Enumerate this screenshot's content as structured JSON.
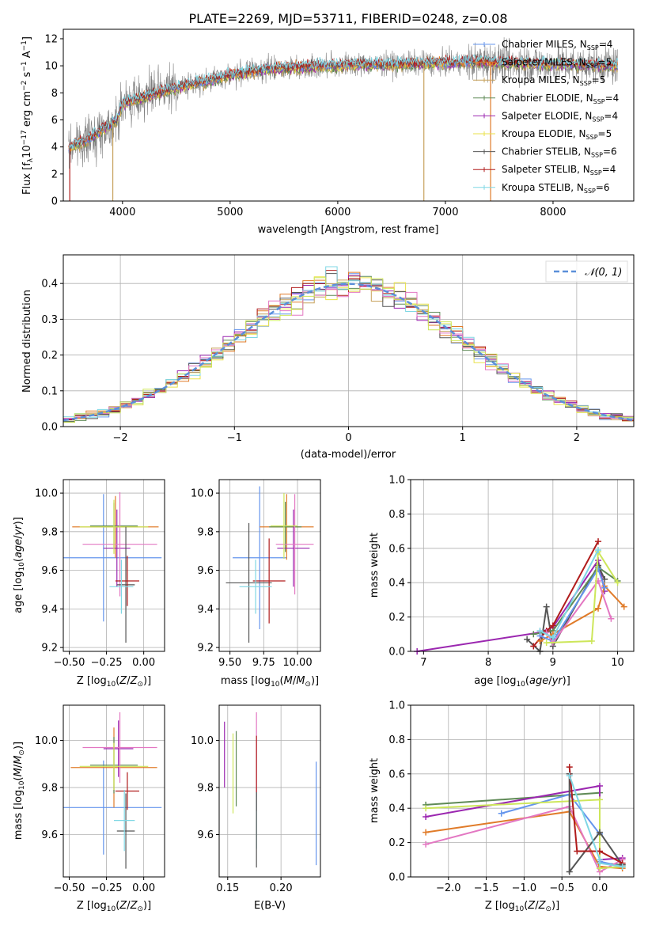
{
  "figure_title": "PLATE=2269, MJD=53711, FIBERID=0248, z=0.08",
  "colors": {
    "Chabrier MILES": "#6495ed",
    "Salpeter MILES": "#e07b29",
    "Kroupa MILES": "#c6a15b",
    "Chabrier ELODIE": "#5f8a56",
    "Salpeter ELODIE": "#9b27b0",
    "Kroupa ELODIE": "#e8e24a",
    "Chabrier STELIB": "#555555",
    "Salpeter STELIB": "#b01c1c",
    "Kroupa STELIB": "#7fd7e4",
    "pink": "#e377c2",
    "lime": "#cde65a",
    "gaussian": "#5b8fd9",
    "observed_spectrum": "#7f7f7f"
  },
  "chart_data": [
    {
      "id": "spectrum",
      "type": "line",
      "title": "PLATE=2269, MJD=53711, FIBERID=0248, z=0.08",
      "xlabel": "wavelength [Angstrom, rest frame]",
      "ylabel": "Flux [f_λ 10^-17 erg cm^-2 s^-1 A^-1]",
      "xlim": [
        3450,
        8750
      ],
      "ylim": [
        0,
        12.7
      ],
      "xticks": [
        4000,
        5000,
        6000,
        7000,
        8000
      ],
      "yticks": [
        0,
        2,
        4,
        6,
        8,
        10,
        12
      ],
      "legend_position": "right",
      "legend": [
        "Chabrier MILES, N_SSP=4",
        "Salpeter MILES, N_SSP=5",
        "Kroupa MILES, N_SSP=5",
        "Chabrier ELODIE, N_SSP=4",
        "Salpeter ELODIE, N_SSP=4",
        "Kroupa ELODIE, N_SSP=5",
        "Chabrier STELIB, N_SSP=6",
        "Salpeter STELIB, N_SSP=4",
        "Kroupa STELIB, N_SSP=6"
      ],
      "continuum": {
        "x": [
          3500,
          3550,
          3650,
          3800,
          3950,
          4000,
          4200,
          4500,
          4800,
          5000,
          5300,
          5600,
          5900,
          6200,
          6500,
          6800,
          7100,
          7400,
          7700,
          8000,
          8300,
          8600
        ],
        "y": [
          3.8,
          4.2,
          4.4,
          5.2,
          6.0,
          7.2,
          7.7,
          8.4,
          8.9,
          9.3,
          9.7,
          9.9,
          10.0,
          10.1,
          10.1,
          10.2,
          10.2,
          10.3,
          10.2,
          10.1,
          10.1,
          10.0
        ]
      },
      "noise_sigma": 0.9
    },
    {
      "id": "residuals",
      "type": "histogram",
      "xlabel": "(data-model)/error",
      "ylabel": "Normed distribution",
      "xlim": [
        -2.5,
        2.5
      ],
      "ylim": [
        0,
        0.48
      ],
      "xticks": [
        -2,
        -1,
        0,
        1,
        2
      ],
      "yticks": [
        0.0,
        0.1,
        0.2,
        0.3,
        0.4
      ],
      "legend": [
        "N(0,1)"
      ],
      "legend_position": "upper right",
      "bin_width": 0.1,
      "grid": true
    },
    {
      "id": "age-vs-Z",
      "type": "errorbar",
      "xlabel": "Z [log10(Z/Z_sun)]",
      "ylabel": "age [log10(age/yr)]",
      "xlim": [
        -0.54,
        0.14
      ],
      "ylim": [
        9.18,
        10.07
      ],
      "xticks": [
        -0.5,
        -0.25,
        0.0
      ],
      "yticks": [
        9.2,
        9.4,
        9.6,
        9.8,
        10.0
      ],
      "points": [
        {
          "color": "Chabrier MILES",
          "x": -0.27,
          "y": 9.665,
          "xerr": 0.39,
          "yerr": 0.33
        },
        {
          "color": "Salpeter MILES",
          "x": -0.19,
          "y": 9.825,
          "xerr": 0.29,
          "yerr": 0.16
        },
        {
          "color": "Chabrier ELODIE",
          "x": -0.2,
          "y": 9.83,
          "xerr": 0.16,
          "yerr": 0.12
        },
        {
          "color": "Salpeter ELODIE",
          "x": -0.18,
          "y": 9.715,
          "xerr": 0.09,
          "yerr": 0.2
        },
        {
          "color": "pink",
          "x": -0.16,
          "y": 9.735,
          "xerr": 0.25,
          "yerr": 0.27
        },
        {
          "color": "lime",
          "x": -0.2,
          "y": 9.825,
          "xerr": 0.23,
          "yerr": 0.14
        },
        {
          "color": "Chabrier STELIB",
          "x": -0.12,
          "y": 9.525,
          "xerr": 0.06,
          "yerr": 0.3
        },
        {
          "color": "Salpeter STELIB",
          "x": -0.11,
          "y": 9.545,
          "xerr": 0.08,
          "yerr": 0.13
        },
        {
          "color": "Kroupa STELIB",
          "x": -0.15,
          "y": 9.515,
          "xerr": 0.08,
          "yerr": 0.14
        }
      ]
    },
    {
      "id": "age-vs-mass",
      "type": "errorbar",
      "xlabel": "mass [log10(M/M_sun)]",
      "ylabel": "",
      "xlim": [
        9.42,
        10.17
      ],
      "ylim": [
        9.18,
        10.07
      ],
      "xticks": [
        9.5,
        9.75,
        10.0
      ],
      "yticks": [
        9.2,
        9.4,
        9.6,
        9.8,
        10.0
      ],
      "points": [
        {
          "color": "Chabrier MILES",
          "x": 9.72,
          "y": 9.665,
          "xerr": 0.2,
          "yerr": 0.37
        },
        {
          "color": "Salpeter MILES",
          "x": 9.92,
          "y": 9.825,
          "xerr": 0.2,
          "yerr": 0.17
        },
        {
          "color": "Chabrier ELODIE",
          "x": 9.91,
          "y": 9.825,
          "xerr": 0.12,
          "yerr": 0.13
        },
        {
          "color": "Salpeter ELODIE",
          "x": 9.97,
          "y": 9.715,
          "xerr": 0.12,
          "yerr": 0.2
        },
        {
          "color": "pink",
          "x": 9.98,
          "y": 9.735,
          "xerr": 0.14,
          "yerr": 0.26
        },
        {
          "color": "lime",
          "x": 9.9,
          "y": 9.83,
          "xerr": 0.1,
          "yerr": 0.17
        },
        {
          "color": "Chabrier STELIB",
          "x": 9.64,
          "y": 9.535,
          "xerr": 0.17,
          "yerr": 0.31
        },
        {
          "color": "Salpeter STELIB",
          "x": 9.79,
          "y": 9.545,
          "xerr": 0.12,
          "yerr": 0.22
        },
        {
          "color": "Kroupa STELIB",
          "x": 9.69,
          "y": 9.515,
          "xerr": 0.12,
          "yerr": 0.14
        }
      ]
    },
    {
      "id": "mass-weight-vs-age",
      "type": "line",
      "xlabel": "age [log10(age/yr)]",
      "ylabel": "mass weight",
      "xlim": [
        6.8,
        10.25
      ],
      "ylim": [
        0.0,
        1.0
      ],
      "xticks": [
        7,
        8,
        9,
        10
      ],
      "yticks": [
        0.0,
        0.2,
        0.4,
        0.6,
        0.8,
        1.0
      ],
      "grid": true,
      "series": [
        {
          "color": "Salpeter ELODIE",
          "x": [
            6.9,
            8.8,
            9.0,
            9.7,
            9.8
          ],
          "y": [
            0.0,
            0.11,
            0.14,
            0.53,
            0.35
          ]
        },
        {
          "color": "Chabrier STELIB",
          "x": [
            8.6,
            8.8,
            8.9,
            9.0,
            9.7,
            9.8
          ],
          "y": [
            0.07,
            0.0,
            0.26,
            0.03,
            0.5,
            0.42
          ]
        },
        {
          "color": "Chabrier ELODIE",
          "x": [
            8.7,
            9.0,
            9.7,
            10.0
          ],
          "y": [
            0.1,
            0.12,
            0.49,
            0.41
          ]
        },
        {
          "color": "Salpeter STELIB",
          "x": [
            8.7,
            8.9,
            9.0,
            9.7
          ],
          "y": [
            0.03,
            0.12,
            0.15,
            0.64
          ]
        },
        {
          "color": "Salpeter MILES",
          "x": [
            8.8,
            9.0,
            9.7,
            9.8,
            10.1
          ],
          "y": [
            0.06,
            0.1,
            0.25,
            0.38,
            0.26
          ]
        },
        {
          "color": "Chabrier MILES",
          "x": [
            8.8,
            9.0,
            9.7,
            9.8
          ],
          "y": [
            0.09,
            0.06,
            0.48,
            0.37
          ]
        },
        {
          "color": "pink",
          "x": [
            8.9,
            9.0,
            9.7,
            9.9
          ],
          "y": [
            0.11,
            0.05,
            0.41,
            0.19
          ]
        },
        {
          "color": "lime",
          "x": [
            8.9,
            9.6,
            9.7,
            10.0
          ],
          "y": [
            0.05,
            0.06,
            0.58,
            0.4
          ]
        },
        {
          "color": "Kroupa STELIB",
          "x": [
            8.8,
            9.0,
            9.7
          ],
          "y": [
            0.12,
            0.08,
            0.59
          ]
        }
      ]
    },
    {
      "id": "mass-vs-Z",
      "type": "errorbar",
      "xlabel": "Z [log10(Z/Z_sun)]",
      "ylabel": "mass [log10(M/M_sun)]",
      "xlim": [
        -0.54,
        0.14
      ],
      "ylim": [
        9.42,
        10.15
      ],
      "xticks": [
        -0.5,
        -0.25,
        0.0
      ],
      "yticks": [
        9.6,
        9.8,
        10.0
      ],
      "points": [
        {
          "color": "Chabrier MILES",
          "x": -0.27,
          "y": 9.715,
          "xerr": 0.39,
          "yerr": 0.2
        },
        {
          "color": "Salpeter MILES",
          "x": -0.2,
          "y": 9.885,
          "xerr": 0.29,
          "yerr": 0.17
        },
        {
          "color": "Chabrier ELODIE",
          "x": -0.2,
          "y": 9.895,
          "xerr": 0.16,
          "yerr": 0.12
        },
        {
          "color": "Salpeter ELODIE",
          "x": -0.17,
          "y": 9.965,
          "xerr": 0.1,
          "yerr": 0.12
        },
        {
          "color": "pink",
          "x": -0.16,
          "y": 9.97,
          "xerr": 0.25,
          "yerr": 0.15
        },
        {
          "color": "lime",
          "x": -0.2,
          "y": 9.89,
          "xerr": 0.23,
          "yerr": 0.1
        },
        {
          "color": "Chabrier STELIB",
          "x": -0.12,
          "y": 9.615,
          "xerr": 0.06,
          "yerr": 0.16
        },
        {
          "color": "Salpeter STELIB",
          "x": -0.11,
          "y": 9.785,
          "xerr": 0.08,
          "yerr": 0.08
        },
        {
          "color": "Kroupa STELIB",
          "x": -0.13,
          "y": 9.66,
          "xerr": 0.07,
          "yerr": 0.13
        }
      ]
    },
    {
      "id": "mass-vs-EBV",
      "type": "errorbar",
      "xlabel": "E(B-V)",
      "ylabel": "",
      "xlim": [
        0.142,
        0.237
      ],
      "ylim": [
        9.42,
        10.15
      ],
      "xticks": [
        0.15,
        0.2
      ],
      "yticks": [
        9.6,
        9.8,
        10.0
      ],
      "points": [
        {
          "color": "Salpeter ELODIE",
          "x": 0.147,
          "y": 9.94,
          "xerr": 0.0,
          "yerr": 0.14
        },
        {
          "color": "lime",
          "x": 0.155,
          "y": 9.86,
          "xerr": 0.0,
          "yerr": 0.17
        },
        {
          "color": "Chabrier ELODIE",
          "x": 0.158,
          "y": 9.88,
          "xerr": 0.0,
          "yerr": 0.16
        },
        {
          "color": "pink",
          "x": 0.177,
          "y": 9.94,
          "xerr": 0.0,
          "yerr": 0.18
        },
        {
          "color": "Salpeter STELIB",
          "x": 0.177,
          "y": 9.86,
          "xerr": 0.0,
          "yerr": 0.16
        },
        {
          "color": "Kroupa STELIB",
          "x": 0.177,
          "y": 9.66,
          "xerr": 0.0,
          "yerr": 0.12
        },
        {
          "color": "Chabrier STELIB",
          "x": 0.177,
          "y": 9.62,
          "xerr": 0.0,
          "yerr": 0.16
        },
        {
          "color": "Chabrier MILES",
          "x": 0.233,
          "y": 9.69,
          "xerr": 0.0,
          "yerr": 0.22
        }
      ]
    },
    {
      "id": "mass-weight-vs-Z",
      "type": "line",
      "xlabel": "Z [log10(Z/Z_sun)]",
      "ylabel": "mass weight",
      "xlim": [
        -2.5,
        0.45
      ],
      "ylim": [
        0.0,
        1.0
      ],
      "xticks": [
        -2.0,
        -1.5,
        -1.0,
        -0.5,
        0.0
      ],
      "yticks": [
        0.0,
        0.2,
        0.4,
        0.6,
        0.8,
        1.0
      ],
      "grid": true,
      "series": [
        {
          "color": "Chabrier ELODIE",
          "x": [
            -2.3,
            0.0,
            0.0,
            0.3
          ],
          "y": [
            0.42,
            0.49,
            0.08,
            0.07
          ]
        },
        {
          "color": "Salpeter ELODIE",
          "x": [
            -2.3,
            0.0,
            0.0,
            0.3
          ],
          "y": [
            0.35,
            0.53,
            0.1,
            0.11
          ]
        },
        {
          "color": "Chabrier MILES",
          "x": [
            -1.3,
            -0.4,
            0.0,
            0.0,
            0.3
          ],
          "y": [
            0.37,
            0.48,
            0.25,
            0.09,
            0.06
          ]
        },
        {
          "color": "Salpeter MILES",
          "x": [
            -2.3,
            -0.4,
            0.0,
            0.3
          ],
          "y": [
            0.26,
            0.38,
            0.06,
            0.05
          ]
        },
        {
          "color": "pink",
          "x": [
            -2.3,
            -0.4,
            0.0,
            0.3
          ],
          "y": [
            0.19,
            0.41,
            0.03,
            0.1
          ]
        },
        {
          "color": "lime",
          "x": [
            -2.3,
            0.0,
            0.0,
            0.3
          ],
          "y": [
            0.4,
            0.45,
            0.05,
            0.06
          ]
        },
        {
          "color": "Chabrier STELIB",
          "x": [
            -0.4,
            -0.4,
            0.0,
            0.3
          ],
          "y": [
            0.6,
            0.03,
            0.26,
            0.07
          ]
        },
        {
          "color": "Salpeter STELIB",
          "x": [
            -0.4,
            -0.3,
            0.0,
            0.3
          ],
          "y": [
            0.64,
            0.15,
            0.15,
            0.08
          ]
        },
        {
          "color": "Kroupa STELIB",
          "x": [
            -0.4,
            0.0,
            0.0,
            0.3
          ],
          "y": [
            0.59,
            0.1,
            0.08,
            0.06
          ]
        }
      ]
    }
  ]
}
